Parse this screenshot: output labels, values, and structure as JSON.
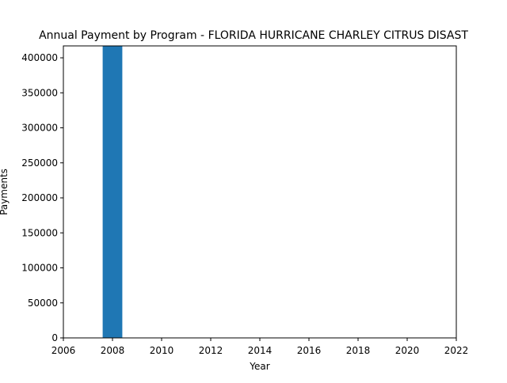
{
  "chart_data": {
    "type": "bar",
    "title": "Annual Payment by Program - FLORIDA HURRICANE CHARLEY CITRUS DISAST",
    "xlabel": "Year",
    "ylabel": "Payments",
    "x": [
      2008
    ],
    "values": [
      417000
    ],
    "xlim": [
      2006,
      2022
    ],
    "ylim": [
      0,
      417000
    ],
    "bar_width_years": 0.8,
    "xticks": [
      2006,
      2008,
      2010,
      2012,
      2014,
      2016,
      2018,
      2020,
      2022
    ],
    "yticks": [
      0,
      50000,
      100000,
      150000,
      200000,
      250000,
      300000,
      350000,
      400000
    ],
    "grid": false,
    "bar_color": "#1f77b4"
  }
}
